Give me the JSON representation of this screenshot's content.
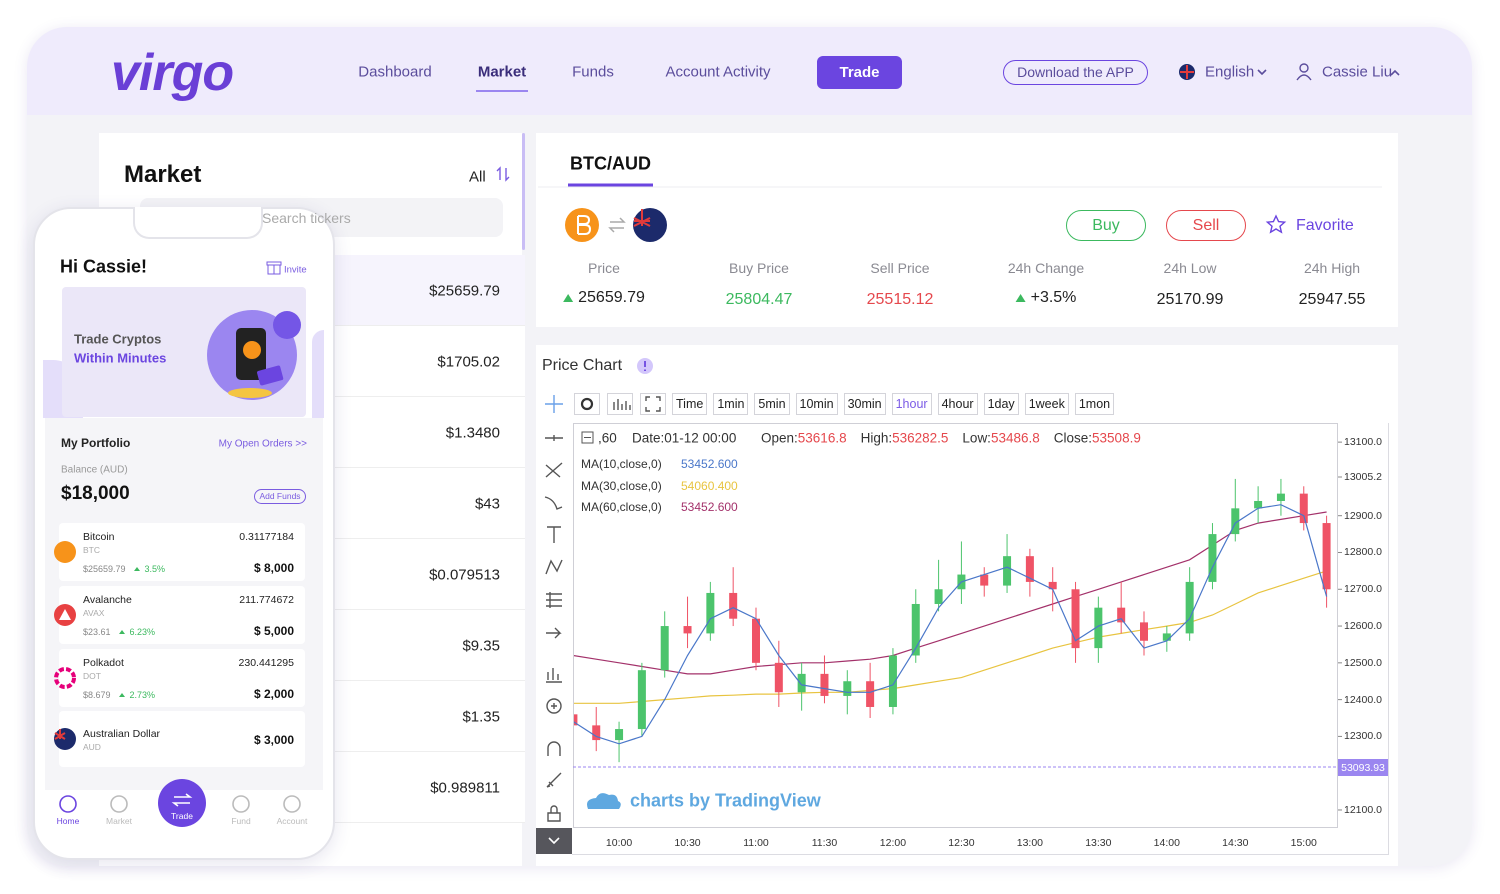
{
  "header": {
    "logo": "virgo",
    "nav": [
      "Dashboard",
      "Market",
      "Funds",
      "Account Activity"
    ],
    "active_nav": "Market",
    "trade": "Trade",
    "download": "Download the APP",
    "language": "English",
    "user": "Cassie Liu"
  },
  "market": {
    "title": "Market",
    "filter": "All",
    "search": "Search tickers",
    "prices": [
      "$25659.79",
      "$1705.02",
      "$1.3480",
      "$43",
      "$0.079513",
      "$9.35",
      "$1.35",
      "$0.989811"
    ]
  },
  "ticker": {
    "pair": "BTC/AUD",
    "buy": "Buy",
    "sell": "Sell",
    "favorite": "Favorite",
    "stats": [
      {
        "label": "Price",
        "value": "25659.79",
        "arrow": "up",
        "color": "#222222"
      },
      {
        "label": "Buy Price",
        "value": "25804.47",
        "color": "#3cb95f"
      },
      {
        "label": "Sell Price",
        "value": "25515.12",
        "color": "#e5484d"
      },
      {
        "label": "24h Change",
        "value": "+3.5%",
        "arrow": "up",
        "color": "#222222"
      },
      {
        "label": "24h Low",
        "value": "25170.99",
        "color": "#222222"
      },
      {
        "label": "24h High",
        "value": "25947.55",
        "color": "#222222"
      }
    ]
  },
  "phone": {
    "greeting": "Hi Cassie!",
    "invite": "Invite",
    "banner_line1": "Trade Cryptos",
    "banner_line2": "Within Minutes",
    "portfolio_title": "My Portfolio",
    "open_orders": "My Open Orders >>",
    "balance_label": "Balance (AUD)",
    "balance": "$18,000",
    "add_funds": "Add Funds",
    "assets": [
      {
        "name": "Bitcoin",
        "symbol": "BTC",
        "price": "$25659.79",
        "change": "3.5%",
        "amount": "0.31177184",
        "value": "$ 8,000",
        "color": "#f7931a"
      },
      {
        "name": "Avalanche",
        "symbol": "AVAX",
        "price": "$23.61",
        "change": "6.23%",
        "amount": "211.774672",
        "value": "$ 5,000",
        "color": "#e84142"
      },
      {
        "name": "Polkadot",
        "symbol": "DOT",
        "price": "$8.679",
        "change": "2.73%",
        "amount": "230.441295",
        "value": "$ 2,000",
        "color": "#e6007a"
      },
      {
        "name": "Australian Dollar",
        "symbol": "AUD",
        "value": "$ 3,000",
        "color": "#1c2a6b"
      }
    ],
    "tabs": [
      "Home",
      "Market",
      "Trade",
      "Fund",
      "Account"
    ],
    "active_tab": "Home"
  },
  "price_chart": {
    "title": "Price Chart",
    "intervals": [
      "Time",
      "1min",
      "5min",
      "10min",
      "30min",
      "1hour",
      "4hour",
      "1day",
      "1week",
      "1mon"
    ],
    "active_interval": "1hour",
    "period": ",60",
    "date": "Date:01-12 00:00",
    "ohlc": [
      {
        "label": "Open:",
        "value": "53616.8"
      },
      {
        "label": "High:",
        "value": "536282.5"
      },
      {
        "label": "Low:",
        "value": "53486.8"
      },
      {
        "label": "Close:",
        "value": "53508.9"
      }
    ],
    "price_tag": "53093.93",
    "watermark": "charts by TradingView"
  },
  "chart_data": {
    "type": "candlestick",
    "categories": [
      null,
      null,
      "10:00",
      null,
      null,
      "10:30",
      null,
      null,
      "11:00",
      null,
      null,
      "11:30",
      null,
      null,
      "12:00",
      null,
      null,
      "12:30",
      null,
      null,
      "13:00",
      null,
      null,
      "13:30",
      null,
      null,
      "14:00",
      null,
      null,
      "14:30",
      null,
      null,
      "15:00",
      null
    ],
    "open": [
      12360,
      12330,
      12290,
      12320,
      12480,
      12600,
      12580,
      12690,
      12620,
      12500,
      12420,
      12470,
      12410,
      12450,
      12380,
      12520,
      12660,
      12700,
      12740,
      12710,
      12790,
      12720,
      12700,
      12540,
      12650,
      12610,
      12560,
      12580,
      12720,
      12850,
      12920,
      12940,
      12960,
      12880
    ],
    "high": [
      12400,
      12380,
      12340,
      12500,
      12640,
      12680,
      12720,
      12760,
      12650,
      12560,
      12500,
      12520,
      12480,
      12500,
      12540,
      12700,
      12780,
      12830,
      12760,
      12850,
      12810,
      12760,
      12720,
      12680,
      12720,
      12640,
      12600,
      12760,
      12880,
      13000,
      12980,
      13000,
      12980,
      12900
    ],
    "low": [
      12300,
      12260,
      12230,
      12300,
      12460,
      12540,
      12560,
      12600,
      12480,
      12380,
      12370,
      12390,
      12360,
      12350,
      12360,
      12500,
      12640,
      12660,
      12680,
      12690,
      12680,
      12640,
      12500,
      12500,
      12580,
      12520,
      12530,
      12560,
      12700,
      12830,
      12880,
      12900,
      12860,
      12650
    ],
    "close": [
      12330,
      12290,
      12320,
      12480,
      12600,
      12580,
      12690,
      12620,
      12500,
      12420,
      12470,
      12410,
      12450,
      12380,
      12520,
      12660,
      12700,
      12740,
      12710,
      12790,
      12720,
      12700,
      12540,
      12650,
      12610,
      12560,
      12580,
      12720,
      12850,
      12920,
      12940,
      12960,
      12880,
      12700
    ],
    "up_color": "#4cc46c",
    "down_color": "#ef5366",
    "series": [
      {
        "name": "MA(10,close,0)",
        "color": "#4a77c9",
        "legend_value": "53452.600",
        "values": [
          12340,
          12300,
          12280,
          12300,
          12400,
          12520,
          12620,
          12650,
          12620,
          12520,
          12440,
          12430,
          12420,
          12420,
          12440,
          12540,
          12650,
          12720,
          12740,
          12760,
          12730,
          12700,
          12560,
          12600,
          12620,
          12540,
          12560,
          12620,
          12760,
          12880,
          12920,
          12930,
          12900,
          12680
        ]
      },
      {
        "name": "MA(30,close,0)",
        "color": "#e8c440",
        "legend_value": "54060.400",
        "values": [
          12390,
          12390,
          12390,
          12395,
          12400,
          12405,
          12410,
          12412,
          12415,
          12415,
          12418,
          12420,
          12420,
          12425,
          12430,
          12440,
          12450,
          12460,
          12480,
          12500,
          12520,
          12540,
          12555,
          12570,
          12580,
          12590,
          12600,
          12610,
          12630,
          12660,
          12690,
          12710,
          12730,
          12750
        ]
      },
      {
        "name": "MA(60,close,0)",
        "color": "#a3316a",
        "legend_value": "53452.600",
        "values": [
          12520,
          12510,
          12500,
          12490,
          12480,
          12470,
          12470,
          12480,
          12490,
          12495,
          12500,
          12500,
          12505,
          12510,
          12520,
          12540,
          12560,
          12580,
          12600,
          12620,
          12640,
          12660,
          12680,
          12700,
          12720,
          12740,
          12760,
          12780,
          12820,
          12860,
          12880,
          12890,
          12900,
          12910
        ]
      }
    ],
    "ylim": [
      12051,
      13152
    ],
    "yticks": [
      {
        "value": 13100,
        "label": "13100.0"
      },
      {
        "value": 13005.2,
        "label": "13005.2"
      },
      {
        "value": 12900,
        "label": "12900.0"
      },
      {
        "value": 12800,
        "label": "12800.0"
      },
      {
        "value": 12700,
        "label": "12700.0"
      },
      {
        "value": 12600,
        "label": "12600.0"
      },
      {
        "value": 12500,
        "label": "12500.0"
      },
      {
        "value": 12400,
        "label": "12400.0"
      },
      {
        "value": 12300,
        "label": "12300.0"
      },
      {
        "value": 12100,
        "label": "12100.0"
      }
    ],
    "grid": false
  }
}
